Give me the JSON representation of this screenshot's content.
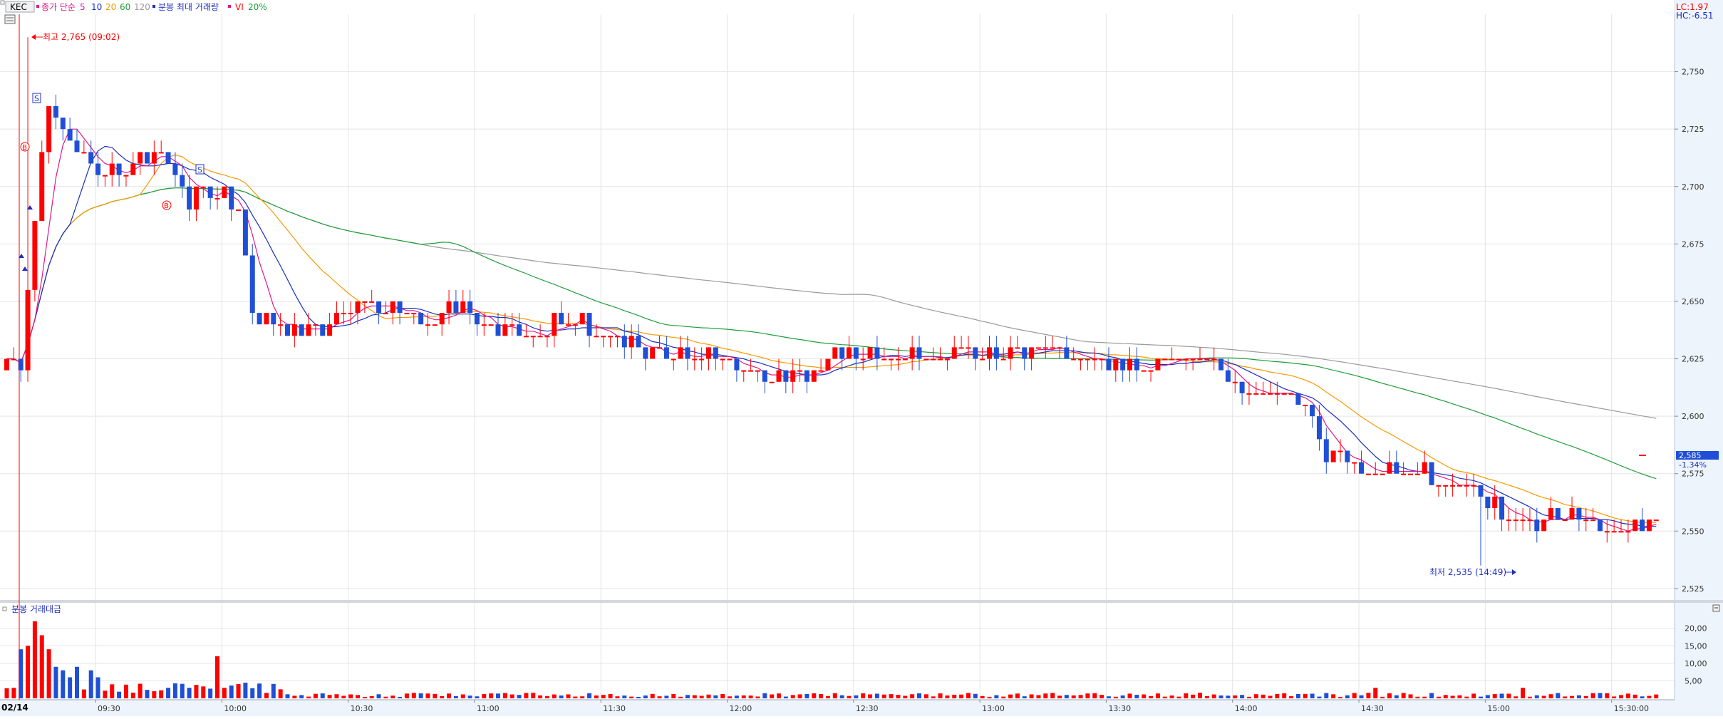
{
  "header": {
    "symbol": "KEC",
    "ma_label": "종가 단순",
    "ma_periods": [
      "5",
      "10",
      "20",
      "60",
      "120"
    ],
    "vol_label": "분봉 최대 거래량",
    "vi_label": "VI",
    "vi_pct": "20%",
    "lc": "LC:1.97",
    "hc": "HC:-6.51"
  },
  "price_box": {
    "value": "2,585",
    "change": "-1.34%"
  },
  "annotations": {
    "high": "최고 2,765 (09:02)",
    "low": "최저 2,535 (14:49)"
  },
  "volume_title": "분봉 거래대금",
  "colors": {
    "up": "#ff0000",
    "down": "#1f4fd6",
    "ma5": "#e0198c",
    "ma10": "#1c2fc0",
    "ma20": "#f59a00",
    "ma60": "#1e9e3a",
    "ma120": "#9a9a9a",
    "header_bg": "#f2f2f2",
    "axis_bg": "#eef4fc"
  },
  "chart_data": {
    "type": "candlestick",
    "date_label": "02/14",
    "x_ticks": [
      "09:30",
      "10:00",
      "10:30",
      "11:00",
      "11:30",
      "12:00",
      "12:30",
      "13:00",
      "13:30",
      "14:00",
      "14:30",
      "15:00",
      "15:30:00"
    ],
    "price_axis": {
      "ylim": [
        2520,
        2775
      ],
      "ticks": [
        "2,750",
        "2,725",
        "2,700",
        "2,675",
        "2,650",
        "2,625",
        "2,600",
        "2,575",
        "2,550",
        "2,525"
      ]
    },
    "price_anchors": [
      [
        0,
        2620
      ],
      [
        2,
        2625
      ],
      [
        4,
        2690
      ],
      [
        6,
        2740
      ],
      [
        8,
        2730
      ],
      [
        10,
        2715
      ],
      [
        14,
        2705
      ],
      [
        20,
        2715
      ],
      [
        26,
        2695
      ],
      [
        30,
        2700
      ],
      [
        33,
        2690
      ],
      [
        35,
        2645
      ],
      [
        40,
        2640
      ],
      [
        45,
        2638
      ],
      [
        50,
        2650
      ],
      [
        55,
        2648
      ],
      [
        60,
        2640
      ],
      [
        65,
        2650
      ],
      [
        68,
        2640
      ],
      [
        75,
        2635
      ],
      [
        80,
        2645
      ],
      [
        85,
        2635
      ],
      [
        90,
        2630
      ],
      [
        100,
        2625
      ],
      [
        110,
        2615
      ],
      [
        115,
        2620
      ],
      [
        120,
        2630
      ],
      [
        125,
        2625
      ],
      [
        135,
        2625
      ],
      [
        140,
        2628
      ],
      [
        150,
        2630
      ],
      [
        155,
        2625
      ],
      [
        160,
        2620
      ],
      [
        165,
        2625
      ],
      [
        170,
        2625
      ],
      [
        175,
        2612
      ],
      [
        180,
        2610
      ],
      [
        185,
        2605
      ],
      [
        188,
        2585
      ],
      [
        195,
        2575
      ],
      [
        200,
        2578
      ],
      [
        205,
        2570
      ],
      [
        210,
        2565
      ],
      [
        216,
        2552
      ],
      [
        222,
        2557
      ],
      [
        228,
        2553
      ],
      [
        235,
        2553
      ]
    ],
    "high": {
      "value": 2765,
      "time": "09:02"
    },
    "low": {
      "value": 2535,
      "time": "14:49"
    },
    "volume_axis": {
      "ylim": [
        0,
        24
      ],
      "ticks": [
        "20,00",
        "15,00",
        "10,00",
        "5,00"
      ]
    },
    "volume_spikes": [
      [
        1,
        3
      ],
      [
        2,
        14
      ],
      [
        3,
        15
      ],
      [
        4,
        22
      ],
      [
        5,
        18
      ],
      [
        6,
        14
      ],
      [
        7,
        9
      ],
      [
        8,
        8
      ],
      [
        9,
        6
      ],
      [
        10,
        9
      ],
      [
        12,
        8
      ],
      [
        13,
        6
      ],
      [
        30,
        12
      ],
      [
        31,
        3
      ],
      [
        195,
        3
      ],
      [
        216,
        3
      ]
    ]
  }
}
